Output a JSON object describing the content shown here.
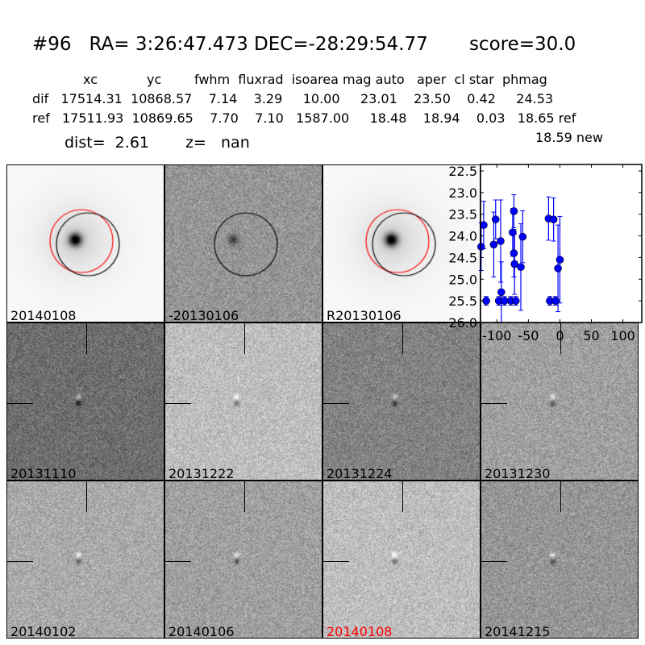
{
  "title": "#96   RA= 3:26:47.473 DEC=-28:29:54.77       score=30.0",
  "table": {
    "header": "xc            yc        fwhm  fluxrad  isoarea mag auto   aper  cl star  phmag",
    "dif": "dif   17514.31  10868.57    7.14    3.29     10.00     23.01    23.50    0.42     24.53",
    "ref": "ref   17511.93  10869.65    7.70    7.10   1587.00     18.48    18.94    0.03   18.65 ref",
    "new": "18.59 new",
    "dist": "dist=  2.61",
    "z": "z=   nan"
  },
  "panels": [
    {
      "label": "20140108",
      "type": "star",
      "circles": true
    },
    {
      "label": "-20130106",
      "type": "diff",
      "circles": true
    },
    {
      "label": "R20130106",
      "type": "star",
      "circles": true
    },
    {
      "label": "20131110",
      "type": "noise"
    },
    {
      "label": "20131222",
      "type": "noise"
    },
    {
      "label": "20131224",
      "type": "noise"
    },
    {
      "label": "20131230",
      "type": "noise"
    },
    {
      "label": "20140102",
      "type": "noise"
    },
    {
      "label": "20140106",
      "type": "noise"
    },
    {
      "label": "20140108",
      "type": "noise",
      "label_color": "#ff0000"
    },
    {
      "label": "20141215",
      "type": "noise"
    }
  ],
  "chart_data": {
    "type": "scatter",
    "xlim": [
      -126,
      130
    ],
    "ylim": [
      26.0,
      22.5
    ],
    "y_inverted": true,
    "xticks": [
      "-100",
      "-50",
      "0",
      "50",
      "100"
    ],
    "yticks": [
      "22.5",
      "23.0",
      "23.5",
      "24.0",
      "24.5",
      "25.0",
      "25.5",
      "26.0"
    ],
    "color": "#0000ff",
    "points": [
      {
        "x": -125,
        "y": 24.25,
        "err": 0.55
      },
      {
        "x": -121,
        "y": 23.75,
        "err": 0.55
      },
      {
        "x": -117,
        "y": 25.5,
        "err": 0.1
      },
      {
        "x": -105,
        "y": 24.2,
        "err": 0.75
      },
      {
        "x": -102,
        "y": 23.62,
        "err": 0.45
      },
      {
        "x": -97,
        "y": 25.5,
        "err": 0.1
      },
      {
        "x": -94,
        "y": 24.12,
        "err": 0.95
      },
      {
        "x": -93,
        "y": 25.3,
        "err": 0.7
      },
      {
        "x": -88,
        "y": 25.5,
        "err": 0.1
      },
      {
        "x": -78,
        "y": 25.5,
        "err": 0.1
      },
      {
        "x": -75,
        "y": 23.92,
        "err": 0.55
      },
      {
        "x": -73,
        "y": 24.4,
        "err": 0.55
      },
      {
        "x": -73,
        "y": 23.43,
        "err": 0.38
      },
      {
        "x": -72,
        "y": 24.65,
        "err": 0.7
      },
      {
        "x": -70,
        "y": 25.5,
        "err": 0.1
      },
      {
        "x": -62,
        "y": 24.72,
        "err": 1.0
      },
      {
        "x": -59,
        "y": 24.02,
        "err": 0.6
      },
      {
        "x": -18,
        "y": 23.6,
        "err": 0.5
      },
      {
        "x": -16,
        "y": 25.5,
        "err": 0.1
      },
      {
        "x": -10,
        "y": 23.62,
        "err": 0.5
      },
      {
        "x": -7,
        "y": 25.5,
        "err": 0.1
      },
      {
        "x": -3,
        "y": 24.75,
        "err": 1.0
      },
      {
        "x": 0,
        "y": 24.55,
        "err": 1.0
      }
    ]
  }
}
